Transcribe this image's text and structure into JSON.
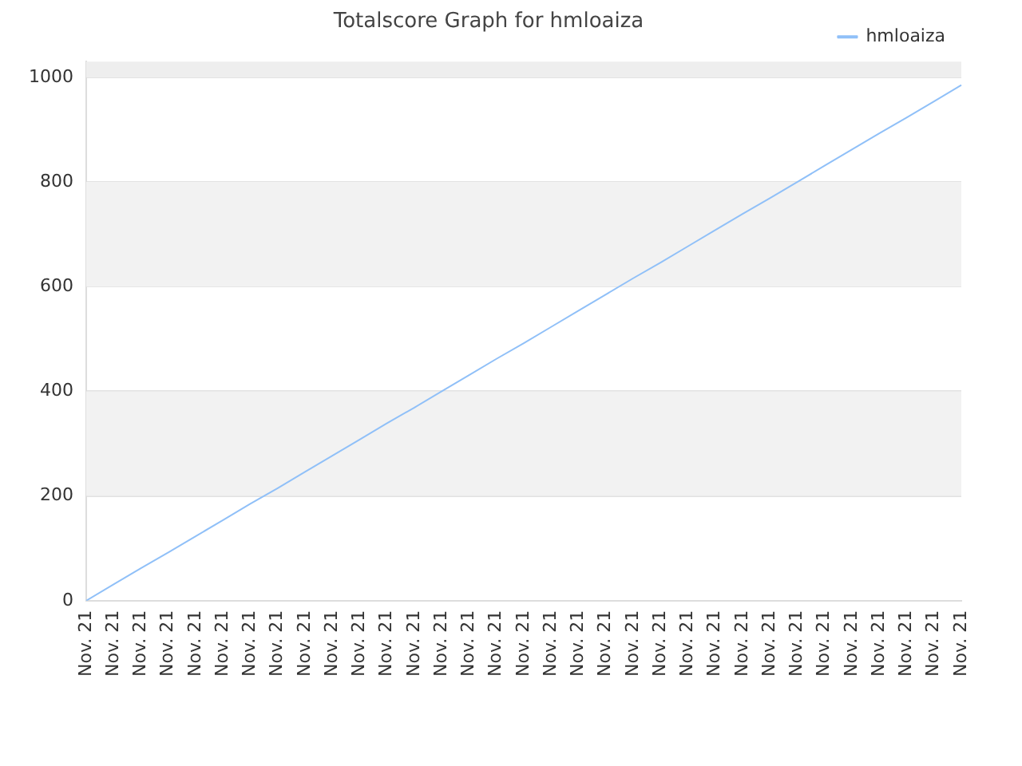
{
  "chart_data": {
    "type": "line",
    "title": "Totalscore Graph for hmloaiza",
    "categories": [
      "Nov. 21",
      "Nov. 21",
      "Nov. 21",
      "Nov. 21",
      "Nov. 21",
      "Nov. 21",
      "Nov. 21",
      "Nov. 21",
      "Nov. 21",
      "Nov. 21",
      "Nov. 21",
      "Nov. 21",
      "Nov. 21",
      "Nov. 21",
      "Nov. 21",
      "Nov. 21",
      "Nov. 21",
      "Nov. 21",
      "Nov. 21",
      "Nov. 21",
      "Nov. 21",
      "Nov. 21",
      "Nov. 21",
      "Nov. 21",
      "Nov. 21",
      "Nov. 21",
      "Nov. 21",
      "Nov. 21",
      "Nov. 21",
      "Nov. 21",
      "Nov. 21",
      "Nov. 21",
      "Nov. 21"
    ],
    "series": [
      {
        "name": "hmloaiza",
        "color": "#90c0f8",
        "values": [
          0,
          31,
          62,
          92,
          123,
          154,
          185,
          215,
          246,
          277,
          308,
          339,
          369,
          400,
          431,
          462,
          492,
          523,
          554,
          585,
          616,
          646,
          677,
          708,
          739,
          769,
          800,
          831,
          862,
          893,
          923,
          954,
          985
        ]
      }
    ],
    "ylim": [
      0,
      1030
    ],
    "yticks": [
      0,
      200,
      400,
      600,
      800,
      1000
    ],
    "bands": [
      {
        "axis": "y",
        "from": 200,
        "to": 400,
        "color": "#f2f2f2"
      },
      {
        "axis": "y",
        "from": 600,
        "to": 800,
        "color": "#f2f2f2"
      },
      {
        "axis": "y",
        "from": 1000,
        "to": 1030,
        "color": "#eeeeee"
      }
    ],
    "grid": "y",
    "legend": "top right",
    "marker": "none",
    "line_style": "solid"
  }
}
